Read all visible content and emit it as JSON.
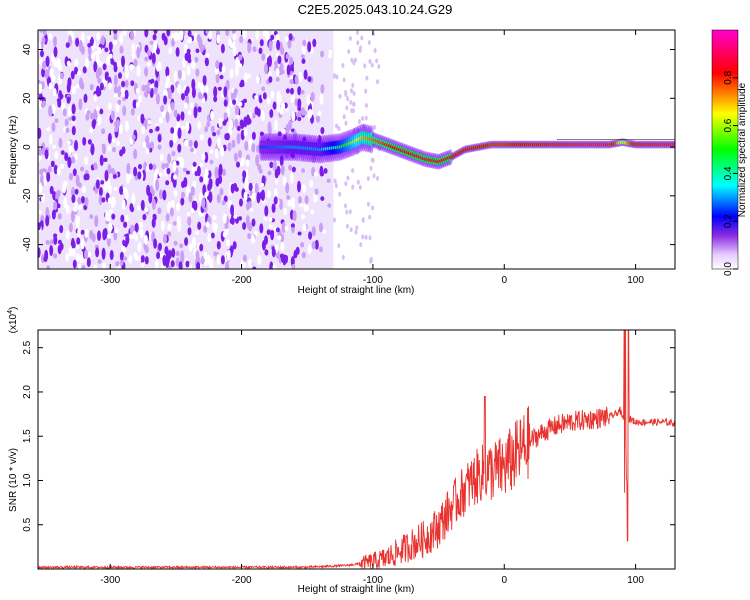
{
  "chart_data": [
    {
      "type": "heatmap",
      "title": "C2E5.2025.043.10.24.G29",
      "xlabel": "Height of straight line (km)",
      "ylabel": "Frequency (Hz)",
      "xlim": [
        -355,
        130
      ],
      "ylim": [
        -50,
        48
      ],
      "xticks": [
        -300,
        -200,
        -100,
        0,
        100
      ],
      "yticks": [
        -40,
        -20,
        0,
        20,
        40
      ],
      "colorbar": {
        "label": "Normalized spectral amplitude",
        "range": [
          0,
          1
        ],
        "ticks": [
          "0.0",
          "0.2",
          "0.4",
          "0.6",
          "0.8"
        ],
        "colors": [
          "#ffffff",
          "#d9b3ff",
          "#7a00ff",
          "#0000ff",
          "#00ffff",
          "#00ff00",
          "#ffff00",
          "#ff0000",
          "#ff00cc"
        ]
      },
      "noise_region_x": [
        -355,
        -130
      ],
      "signal_ridge": {
        "x": [
          -185,
          -160,
          -140,
          -125,
          -115,
          -108,
          -100,
          -90,
          -80,
          -70,
          -60,
          -50,
          -40,
          -30,
          -20,
          -10,
          0,
          20,
          40,
          60,
          80,
          90,
          100,
          130
        ],
        "y": [
          0,
          0,
          -1,
          0,
          2,
          4,
          3,
          1,
          -1,
          -3,
          -5,
          -6,
          -4,
          -1,
          0,
          1,
          1,
          1,
          1,
          1,
          1,
          2,
          1,
          1
        ],
        "amplitude": [
          0.25,
          0.3,
          0.3,
          0.45,
          0.6,
          0.7,
          0.75,
          0.8,
          0.85,
          0.85,
          0.85,
          0.85,
          0.85,
          0.85,
          0.85,
          0.8,
          0.8,
          0.85,
          0.9,
          0.95,
          0.95,
          0.6,
          0.9,
          0.95
        ]
      }
    },
    {
      "type": "line",
      "title": "",
      "xlabel": "Height of straight line (km)",
      "ylabel": "SNR (10 * v/v)",
      "y_scale_label": "(x10",
      "y_scale_exp": "4",
      "y_scale_close": ")",
      "xlim": [
        -355,
        130
      ],
      "ylim": [
        0,
        2.7
      ],
      "xticks": [
        -300,
        -200,
        -100,
        0,
        100
      ],
      "yticks": [
        "0.5",
        "1.0",
        "1.5",
        "2.0",
        "2.5"
      ],
      "color": "#e8322e",
      "series": [
        {
          "x": [
            -355,
            -250,
            -150,
            -120,
            -100,
            -90,
            -80,
            -70,
            -60,
            -50,
            -40,
            -30,
            -20,
            -15,
            -10,
            0,
            10,
            20,
            30,
            40,
            50,
            60,
            70,
            80,
            85,
            88,
            90,
            92,
            95,
            100,
            110,
            120,
            130
          ],
          "y": [
            0.02,
            0.02,
            0.02,
            0.04,
            0.08,
            0.12,
            0.2,
            0.28,
            0.35,
            0.48,
            0.7,
            0.9,
            1.05,
            1.1,
            1.1,
            1.15,
            1.3,
            1.45,
            1.55,
            1.62,
            1.66,
            1.68,
            1.7,
            1.72,
            1.75,
            1.8,
            1.7,
            1.72,
            1.7,
            1.66,
            1.66,
            1.66,
            1.65
          ]
        }
      ],
      "spikes": [
        {
          "x": -15,
          "y": 1.95
        },
        {
          "x": 93,
          "y": 2.7
        },
        {
          "x": 93,
          "y": 0.27
        }
      ]
    }
  ]
}
